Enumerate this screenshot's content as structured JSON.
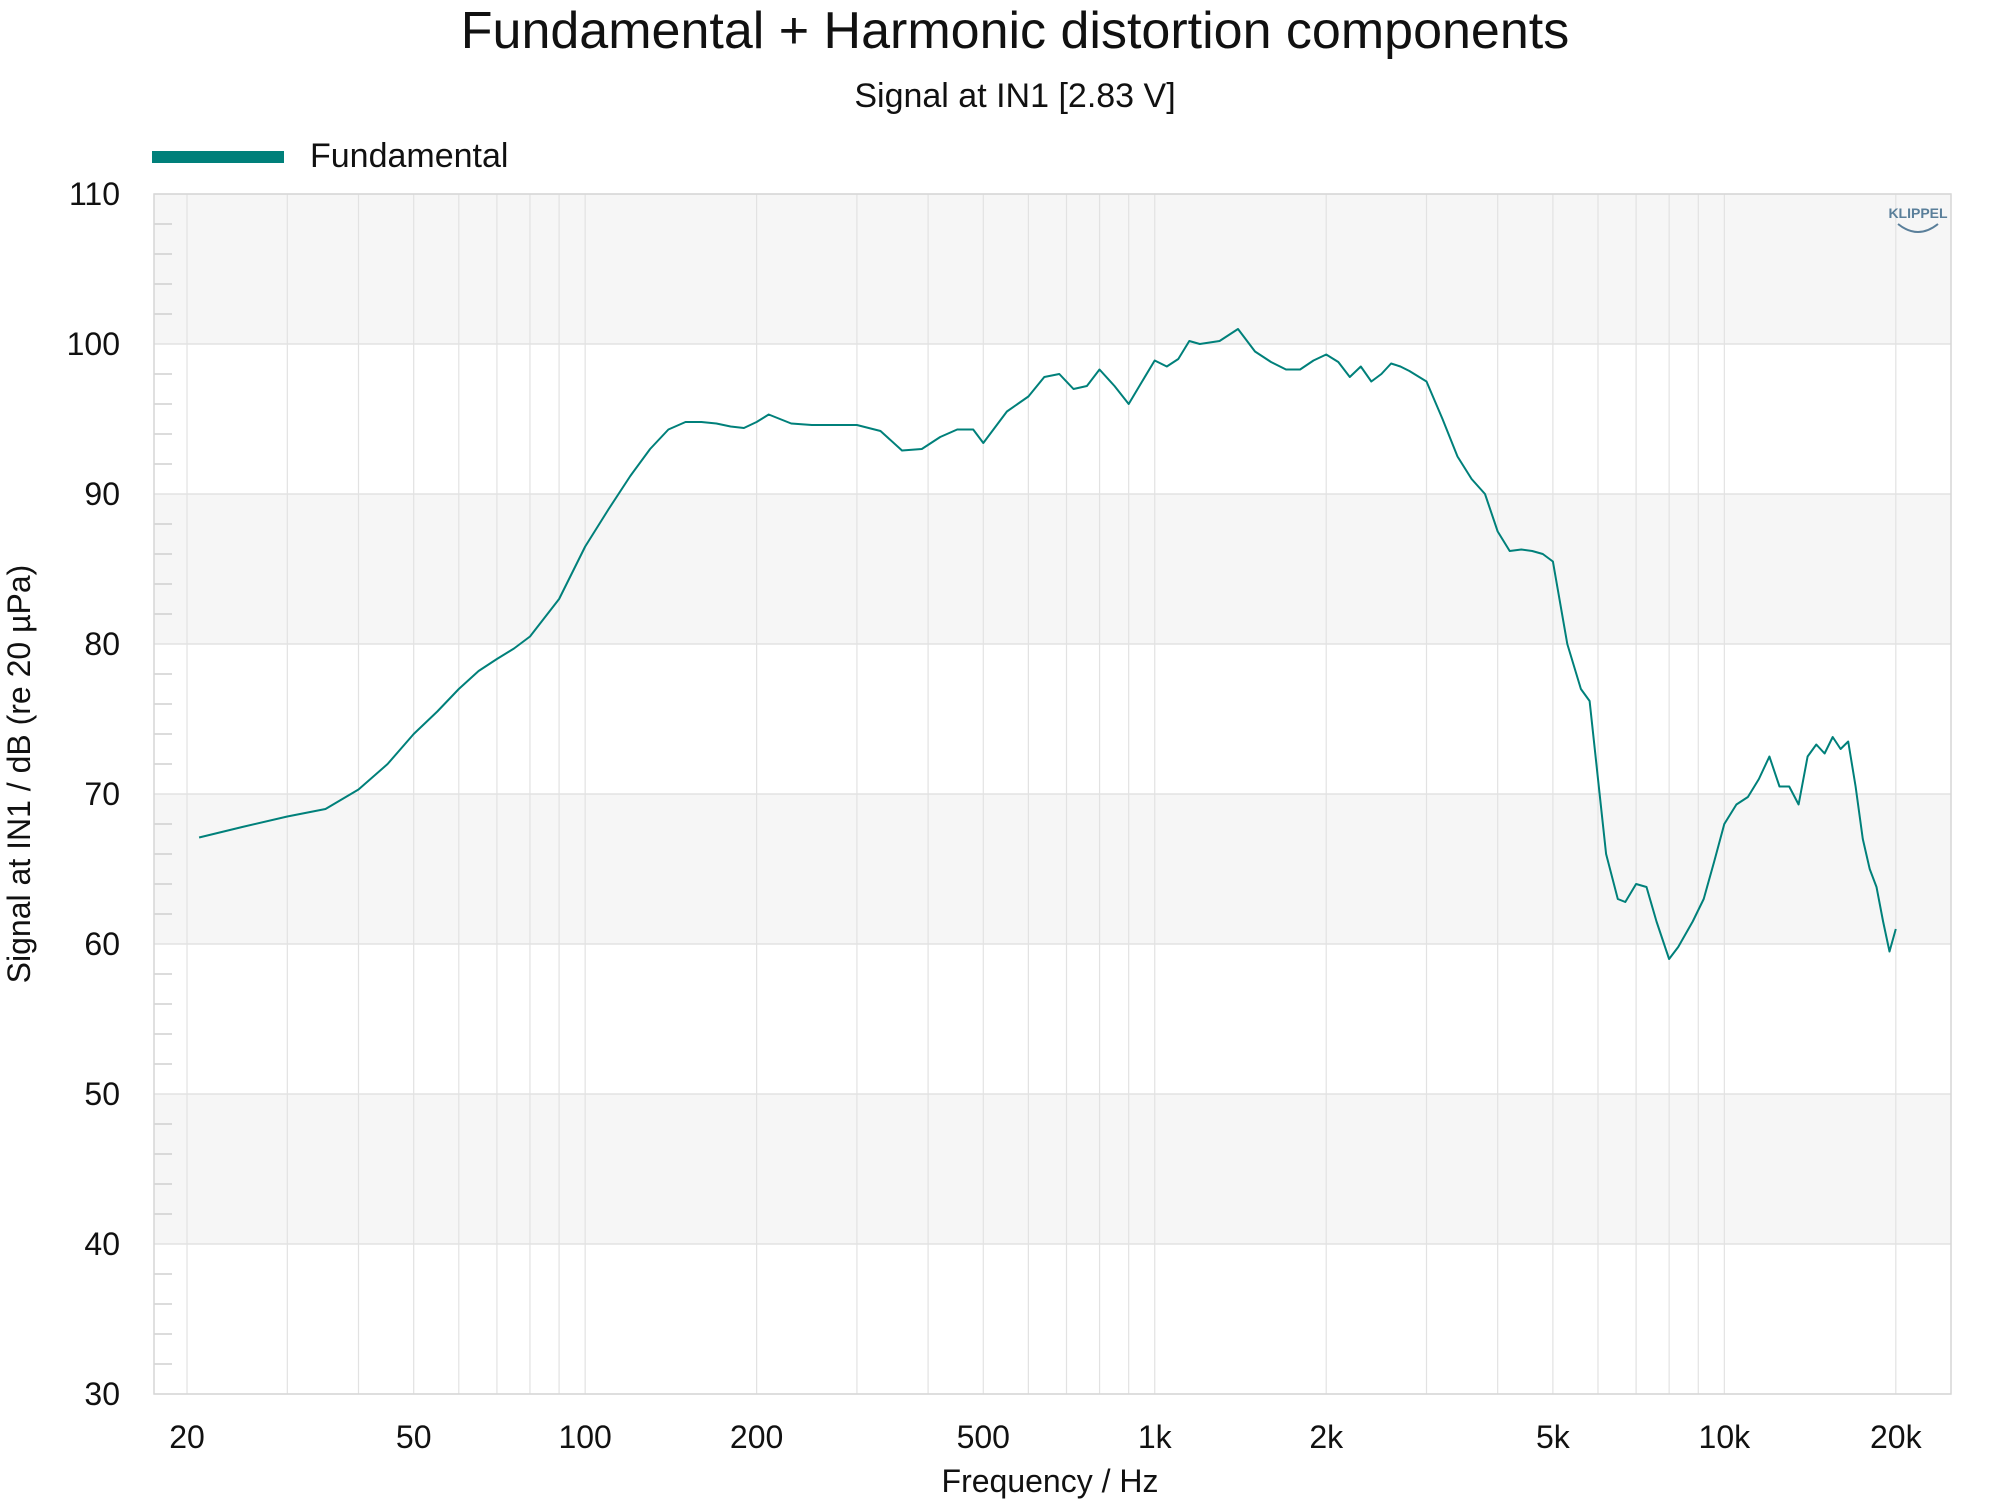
{
  "chart_data": {
    "type": "line",
    "title": "Fundamental + Harmonic distortion components",
    "subtitle": "Signal at IN1 [2.83 V]",
    "xlabel": "Frequency / Hz",
    "ylabel": "Signal at IN1 / dB (re 20 µPa)",
    "x_scale": "log",
    "xlim": [
      17.5,
      25000
    ],
    "ylim": [
      30,
      110
    ],
    "x_ticks": [
      {
        "value": 20,
        "label": "20"
      },
      {
        "value": 50,
        "label": "50"
      },
      {
        "value": 100,
        "label": "100"
      },
      {
        "value": 200,
        "label": "200"
      },
      {
        "value": 500,
        "label": "500"
      },
      {
        "value": 1000,
        "label": "1k"
      },
      {
        "value": 2000,
        "label": "2k"
      },
      {
        "value": 5000,
        "label": "5k"
      },
      {
        "value": 10000,
        "label": "10k"
      },
      {
        "value": 20000,
        "label": "20k"
      }
    ],
    "y_ticks": [
      30,
      40,
      50,
      60,
      70,
      80,
      90,
      100,
      110
    ],
    "grid": true,
    "legend_position": "top-left",
    "watermark": "KLIPPEL",
    "series": [
      {
        "name": "Fundamental",
        "color": "#00807a",
        "x": [
          21,
          25,
          30,
          35,
          40,
          45,
          50,
          55,
          60,
          65,
          70,
          75,
          80,
          90,
          100,
          110,
          120,
          130,
          140,
          150,
          160,
          170,
          180,
          190,
          200,
          210,
          230,
          250,
          280,
          300,
          330,
          360,
          390,
          420,
          450,
          480,
          500,
          550,
          600,
          640,
          680,
          720,
          760,
          800,
          850,
          900,
          950,
          1000,
          1050,
          1100,
          1150,
          1200,
          1300,
          1400,
          1500,
          1600,
          1700,
          1800,
          1900,
          2000,
          2100,
          2200,
          2300,
          2400,
          2500,
          2600,
          2700,
          2800,
          3000,
          3200,
          3400,
          3600,
          3800,
          4000,
          4200,
          4400,
          4600,
          4800,
          5000,
          5300,
          5600,
          5800,
          6000,
          6200,
          6500,
          6700,
          7000,
          7300,
          7600,
          8000,
          8300,
          8800,
          9200,
          9600,
          10000,
          10500,
          11000,
          11500,
          12000,
          12500,
          13000,
          13500,
          14000,
          14500,
          15000,
          15500,
          16000,
          16500,
          17000,
          17500,
          18000,
          18500,
          19000,
          19500,
          20000
        ],
        "y": [
          67.1,
          67.8,
          68.5,
          69.0,
          70.3,
          72.0,
          74.0,
          75.5,
          77.0,
          78.2,
          79.0,
          79.7,
          80.5,
          83.0,
          86.5,
          89.0,
          91.2,
          93.0,
          94.3,
          94.8,
          94.8,
          94.7,
          94.5,
          94.4,
          94.8,
          95.3,
          94.7,
          94.6,
          94.6,
          94.6,
          94.2,
          92.9,
          93.0,
          93.8,
          94.3,
          94.3,
          93.4,
          95.5,
          96.5,
          97.8,
          98.0,
          97.0,
          97.2,
          98.3,
          97.2,
          96.0,
          97.5,
          98.9,
          98.5,
          99.0,
          100.2,
          100.0,
          100.2,
          101.0,
          99.5,
          98.8,
          98.3,
          98.3,
          98.9,
          99.3,
          98.8,
          97.8,
          98.5,
          97.5,
          98.0,
          98.7,
          98.5,
          98.2,
          97.5,
          95.0,
          92.5,
          91.0,
          90.0,
          87.5,
          86.2,
          86.3,
          86.2,
          86.0,
          85.5,
          80.0,
          77.0,
          76.2,
          71.0,
          66.0,
          63.0,
          62.8,
          64.0,
          63.8,
          61.5,
          59.0,
          59.8,
          61.5,
          63.0,
          65.5,
          68.0,
          69.3,
          69.8,
          71.0,
          72.5,
          70.5,
          70.5,
          69.3,
          72.5,
          73.3,
          72.7,
          73.8,
          73.0,
          73.5,
          70.5,
          67.0,
          65.0,
          63.8,
          61.5,
          59.5,
          61.0
        ]
      }
    ]
  }
}
